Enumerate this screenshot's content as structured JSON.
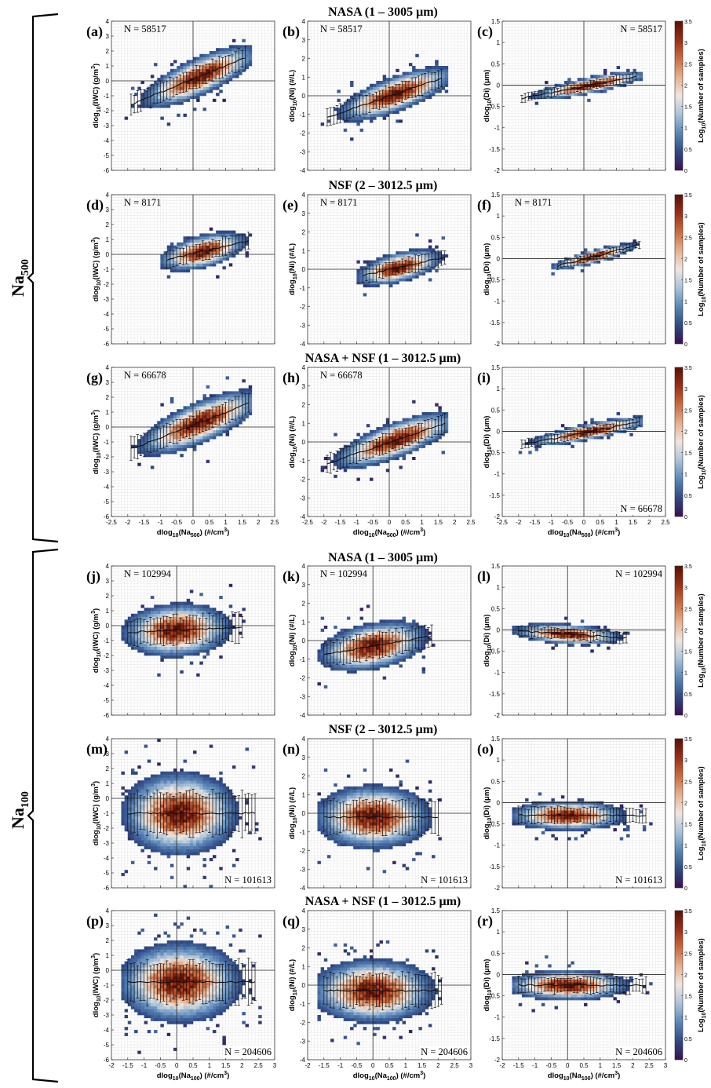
{
  "figure": {
    "group_labels": [
      {
        "text": "Na",
        "sub": "500"
      },
      {
        "text": "Na",
        "sub": "100"
      }
    ],
    "row_titles": [
      "NASA (1 – 3005 μm)",
      "NSF (2 – 3012.5 μm)",
      "NASA + NSF (1 – 3012.5 μm)",
      "NASA (1 – 3005 μm)",
      "NSF (2 – 3012.5 μm)",
      "NASA + NSF (1 – 3012.5 μm)"
    ],
    "colorbar": {
      "label": "Log10(Number of samples)",
      "ticks": [
        "0",
        "0.5",
        "1",
        "1.5",
        "2",
        "2.5",
        "3",
        "3.5"
      ],
      "range": [
        0,
        3.5
      ],
      "colors": [
        "#3b0f4f",
        "#2f4a86",
        "#5a86b6",
        "#a9c3da",
        "#f0e6df",
        "#e7b08d",
        "#cc6b3f",
        "#9b2f14",
        "#5a1005"
      ]
    },
    "y_axes": {
      "iwc": {
        "label": "dlog10(IWC) (g/m3)",
        "range": [
          -6,
          4
        ],
        "ticks": [
          "-6",
          "-5",
          "-4",
          "-3",
          "-2",
          "-1",
          "0",
          "1",
          "2",
          "3",
          "4"
        ]
      },
      "ni": {
        "label": "dlog10(Ni) (#/L)",
        "range": [
          -4,
          4
        ],
        "ticks": [
          "-4",
          "-3",
          "-2",
          "-1",
          "0",
          "1",
          "2",
          "3",
          "4"
        ]
      },
      "di": {
        "label": "dlog10(Di) (μm)",
        "range": [
          -2,
          1.5
        ],
        "ticks": [
          "-2",
          "-1.5",
          "-1",
          "-0.5",
          "0",
          "0.5",
          "1",
          "1.5"
        ]
      }
    },
    "x_axes": {
      "na500": {
        "label": "dlog10(Na500) (#/cm3)",
        "range": [
          -2.5,
          2.5
        ],
        "ticks": [
          "-2.5",
          "-2",
          "-1.5",
          "-1",
          "-0.5",
          "0",
          "0.5",
          "1",
          "1.5",
          "2",
          "2.5"
        ]
      },
      "na100": {
        "label": "dlog10(Na100) (#/cm3)",
        "range": [
          -2,
          3
        ],
        "ticks": [
          "-2",
          "-1.5",
          "-1",
          "-0.5",
          "0",
          "0.5",
          "1",
          "1.5",
          "2",
          "2.5",
          "3"
        ]
      }
    }
  },
  "chart_data": [
    {
      "type": "heatmap",
      "panel": "(a)",
      "n_label": "N = 58517",
      "x_axis": "na500",
      "y_axis": "iwc",
      "cloud": {
        "cx": 0.2,
        "cy": 0.3,
        "slope": 0.9,
        "major": 1.6,
        "minor": 1.2,
        "xmin": -1.9,
        "xmax": 1.6,
        "n_bins": -1
      }
    },
    {
      "type": "heatmap",
      "panel": "(b)",
      "n_label": "N = 58517",
      "x_axis": "na500",
      "y_axis": "ni",
      "cloud": {
        "cx": 0.2,
        "cy": 0.1,
        "slope": 0.6,
        "major": 1.6,
        "minor": 1.1,
        "xmin": -1.9,
        "xmax": 1.6,
        "n_bins": -1
      }
    },
    {
      "type": "heatmap",
      "panel": "(c)",
      "n_label": "N = 58517",
      "x_axis": "na500",
      "y_axis": "di",
      "cloud": {
        "cx": 0.2,
        "cy": 0.0,
        "slope": 0.15,
        "major": 1.6,
        "minor": 0.5,
        "xmin": -1.9,
        "xmax": 1.6,
        "n_bins": -1
      }
    },
    {
      "type": "heatmap",
      "panel": "(d)",
      "n_label": "N = 8171",
      "x_axis": "na500",
      "y_axis": "iwc",
      "cloud": {
        "cx": 0.3,
        "cy": 0.2,
        "slope": 0.5,
        "major": 1.2,
        "minor": 1.0,
        "xmin": -0.8,
        "xmax": 1.7,
        "n_bins": -1
      }
    },
    {
      "type": "heatmap",
      "panel": "(e)",
      "n_label": "N = 8171",
      "x_axis": "na500",
      "y_axis": "ni",
      "cloud": {
        "cx": 0.3,
        "cy": 0.1,
        "slope": 0.4,
        "major": 1.2,
        "minor": 0.9,
        "xmin": -0.8,
        "xmax": 1.7,
        "n_bins": -1
      }
    },
    {
      "type": "heatmap",
      "panel": "(f)",
      "n_label": "N = 8171",
      "x_axis": "na500",
      "y_axis": "di",
      "cloud": {
        "cx": 0.3,
        "cy": 0.05,
        "slope": 0.2,
        "major": 1.2,
        "minor": 0.4,
        "xmin": -0.8,
        "xmax": 1.7,
        "n_bins": -1
      }
    },
    {
      "type": "heatmap",
      "panel": "(g)",
      "n_label": "N = 66678",
      "x_axis": "na500",
      "y_axis": "iwc",
      "cloud": {
        "cx": 0.2,
        "cy": 0.3,
        "slope": 0.85,
        "major": 1.7,
        "minor": 1.3,
        "xmin": -1.9,
        "xmax": 1.7,
        "n_bins": -1
      }
    },
    {
      "type": "heatmap",
      "panel": "(h)",
      "n_label": "N = 66678",
      "x_axis": "na500",
      "y_axis": "ni",
      "cloud": {
        "cx": 0.2,
        "cy": 0.1,
        "slope": 0.6,
        "major": 1.7,
        "minor": 1.1,
        "xmin": -1.9,
        "xmax": 1.7,
        "n_bins": -1
      }
    },
    {
      "type": "heatmap",
      "panel": "(i)",
      "n_label": "N = 66678",
      "x_axis": "na500",
      "y_axis": "di",
      "cloud": {
        "cx": 0.2,
        "cy": 0.0,
        "slope": 0.15,
        "major": 1.7,
        "minor": 0.5,
        "xmin": -1.9,
        "xmax": 1.7,
        "n_bins": -1
      }
    },
    {
      "type": "heatmap",
      "panel": "(j)",
      "n_label": "N = 102994",
      "x_axis": "na100",
      "y_axis": "iwc",
      "cloud": {
        "cx": 0.0,
        "cy": -0.3,
        "slope": 0.1,
        "major": 1.5,
        "minor": 1.6,
        "xmin": -1.5,
        "xmax": 2.0,
        "n_bins": -1
      }
    },
    {
      "type": "heatmap",
      "panel": "(k)",
      "n_label": "N = 102994",
      "x_axis": "na100",
      "y_axis": "ni",
      "cloud": {
        "cx": 0.0,
        "cy": -0.3,
        "slope": 0.3,
        "major": 1.5,
        "minor": 1.4,
        "xmin": -1.5,
        "xmax": 1.8,
        "n_bins": -1
      }
    },
    {
      "type": "heatmap",
      "panel": "(l)",
      "n_label": "N = 102994",
      "x_axis": "na100",
      "y_axis": "di",
      "cloud": {
        "cx": 0.0,
        "cy": -0.1,
        "slope": -0.05,
        "major": 1.5,
        "minor": 0.6,
        "xmin": -1.5,
        "xmax": 1.8,
        "n_bins": -1
      }
    },
    {
      "type": "heatmap",
      "panel": "(m)",
      "n_label": "N = 101613",
      "x_axis": "na100",
      "y_axis": "iwc",
      "cloud": {
        "cx": 0.1,
        "cy": -1.0,
        "slope": 0.0,
        "major": 1.6,
        "minor": 2.5,
        "xmin": -1.5,
        "xmax": 2.4,
        "n_bins": -1
      }
    },
    {
      "type": "heatmap",
      "panel": "(n)",
      "n_label": "N = 101613",
      "x_axis": "na100",
      "y_axis": "ni",
      "cloud": {
        "cx": 0.0,
        "cy": -0.2,
        "slope": 0.0,
        "major": 1.6,
        "minor": 1.9,
        "xmin": -1.5,
        "xmax": 2.0,
        "n_bins": -1
      }
    },
    {
      "type": "heatmap",
      "panel": "(o)",
      "n_label": "N = 101613",
      "x_axis": "na100",
      "y_axis": "di",
      "cloud": {
        "cx": 0.0,
        "cy": -0.3,
        "slope": 0.0,
        "major": 1.6,
        "minor": 0.9,
        "xmin": -1.5,
        "xmax": 2.4,
        "n_bins": -1
      }
    },
    {
      "type": "heatmap",
      "panel": "(p)",
      "n_label": "N = 204606",
      "x_axis": "na100",
      "y_axis": "iwc",
      "cloud": {
        "cx": 0.1,
        "cy": -0.8,
        "slope": 0.0,
        "major": 1.7,
        "minor": 2.4,
        "xmin": -1.5,
        "xmax": 2.4,
        "n_bins": -1
      }
    },
    {
      "type": "heatmap",
      "panel": "(q)",
      "n_label": "N = 204606",
      "x_axis": "na100",
      "y_axis": "ni",
      "cloud": {
        "cx": 0.0,
        "cy": -0.3,
        "slope": 0.0,
        "major": 1.7,
        "minor": 1.9,
        "xmin": -1.5,
        "xmax": 2.1,
        "n_bins": -1
      }
    },
    {
      "type": "heatmap",
      "panel": "(r)",
      "n_label": "N = 204606",
      "x_axis": "na100",
      "y_axis": "di",
      "cloud": {
        "cx": 0.0,
        "cy": -0.25,
        "slope": 0.0,
        "major": 1.7,
        "minor": 0.9,
        "xmin": -1.5,
        "xmax": 2.4,
        "n_bins": -1
      }
    }
  ]
}
